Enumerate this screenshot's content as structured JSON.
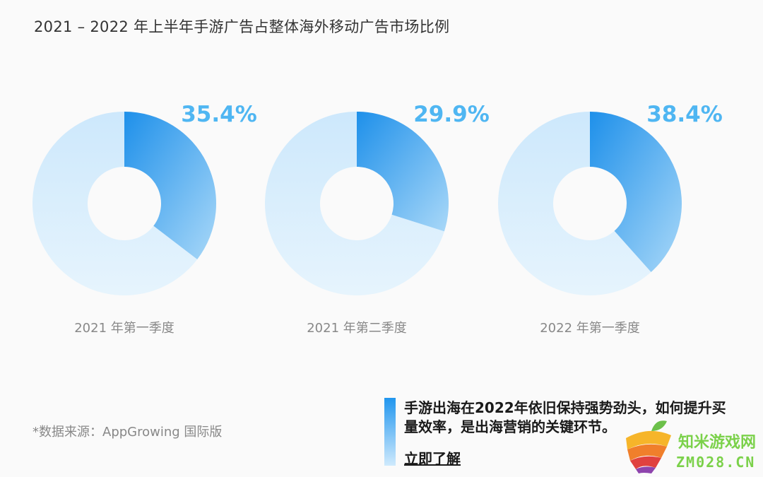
{
  "chart_data": {
    "type": "pie",
    "title": "2021 – 2022 年上半年手游广告占整体海外移动广告市场比例",
    "donut": true,
    "charts": [
      {
        "category": "2021 年第一季度",
        "value": 35.4,
        "label": "35.4%"
      },
      {
        "category": "2021 年第二季度",
        "value": 29.9,
        "label": "29.9%"
      },
      {
        "category": "2022 年第一季度",
        "value": 38.4,
        "label": "38.4%"
      }
    ],
    "colors": {
      "highlight_start": "#1e90ea",
      "highlight_end": "#a9d8f8",
      "remainder": "#d2ebfc",
      "label": "#4fb6f2"
    }
  },
  "source": "*数据来源：AppGrowing 国际版",
  "cta": {
    "text": "手游出海在2022年依旧保持强势劲头，如何提升买量效率，是出海营销的关键环节。",
    "link": "立即了解"
  },
  "watermark": {
    "name": "知米游戏网",
    "domain": "ZM028.CN"
  }
}
